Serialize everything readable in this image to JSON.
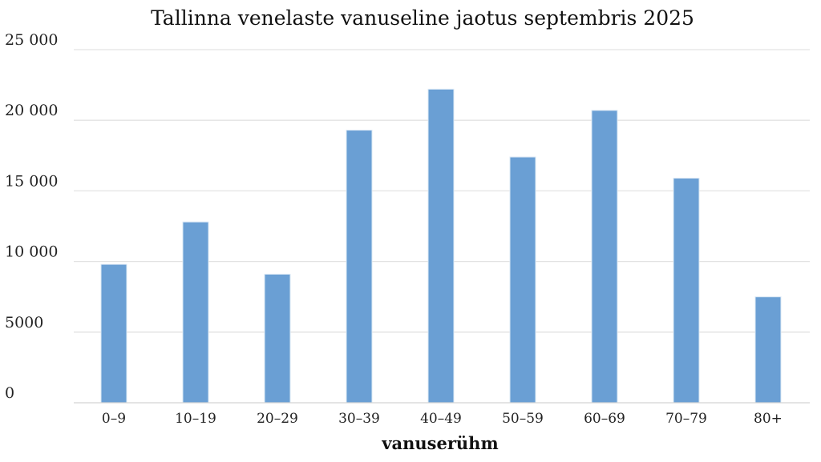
{
  "chart_data": {
    "type": "bar",
    "title": "Tallinna venelaste vanuseline jaotus septembris 2025",
    "xlabel": "vanuserühm",
    "ylabel": "",
    "categories": [
      "0–9",
      "10–19",
      "20–29",
      "30–39",
      "40–49",
      "50–59",
      "60–69",
      "70–79",
      "80+"
    ],
    "values": [
      9800,
      12800,
      9100,
      19300,
      22200,
      17400,
      20700,
      15900,
      7500
    ],
    "ylim": [
      0,
      25000
    ],
    "yticks": [
      0,
      5000,
      10000,
      15000,
      20000,
      25000
    ],
    "ytick_labels": [
      "0",
      "5000",
      "10 000",
      "15 000",
      "20 000",
      "25 000"
    ],
    "grid": true,
    "legend": "none",
    "bar_color": "#6a9fd4",
    "bar_edge_color": "#dbe8f5"
  }
}
